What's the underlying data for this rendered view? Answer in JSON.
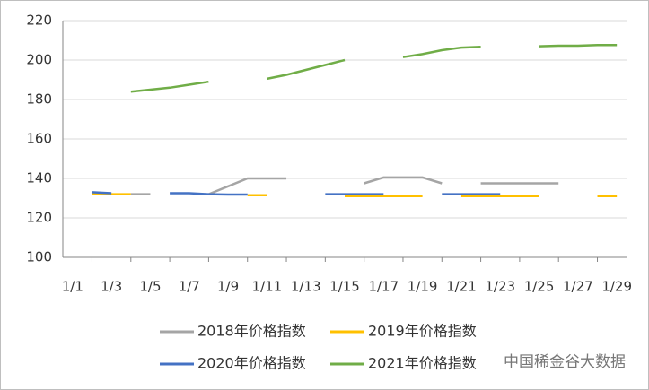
{
  "chart_data": {
    "type": "line",
    "categories": [
      "1/1",
      null,
      "1/3",
      null,
      "1/5",
      null,
      "1/7",
      null,
      "1/9",
      null,
      "1/11",
      null,
      "1/13",
      null,
      "1/15",
      null,
      "1/17",
      null,
      "1/19",
      null,
      "1/21",
      null,
      "1/23",
      null,
      "1/25",
      null,
      "1/27",
      null,
      "1/29"
    ],
    "series": [
      {
        "name": "2018年价格指数",
        "color": "#a5a5a5",
        "values": [
          null,
          null,
          null,
          132,
          132,
          null,
          null,
          132,
          136,
          140,
          140,
          140,
          null,
          null,
          null,
          137.5,
          140.5,
          140.5,
          140.5,
          137.5,
          null,
          137.5,
          137.5,
          137.5,
          137.5,
          137.5,
          null,
          null,
          null
        ]
      },
      {
        "name": "2019年价格指数",
        "color": "#ffc000",
        "values": [
          null,
          132,
          132,
          132,
          null,
          null,
          null,
          null,
          null,
          131.5,
          131.5,
          null,
          null,
          null,
          131,
          131,
          131,
          131,
          131,
          null,
          131,
          131,
          131,
          131,
          131,
          null,
          null,
          131,
          131
        ]
      },
      {
        "name": "2020年价格指数",
        "color": "#4472c4",
        "values": [
          null,
          133,
          132.5,
          null,
          null,
          132.5,
          132.5,
          132,
          131.8,
          131.8,
          null,
          null,
          null,
          132,
          132,
          132,
          132,
          null,
          null,
          132,
          132,
          132,
          132,
          null,
          null,
          null,
          null,
          null,
          null
        ]
      },
      {
        "name": "2021年价格指数",
        "color": "#70ad47",
        "values": [
          null,
          null,
          null,
          184,
          185,
          186,
          187.5,
          189,
          null,
          null,
          190.5,
          192.5,
          195,
          197.5,
          200,
          null,
          null,
          201.5,
          203,
          205,
          206.3,
          206.7,
          null,
          null,
          207,
          207.3,
          207.3,
          207.6,
          207.6
        ]
      }
    ],
    "ylim": [
      100,
      220
    ],
    "yticks": [
      100,
      120,
      140,
      160,
      180,
      200,
      220
    ],
    "grid": true,
    "legend": "bottom",
    "watermark": "中国稀金谷大数据"
  }
}
